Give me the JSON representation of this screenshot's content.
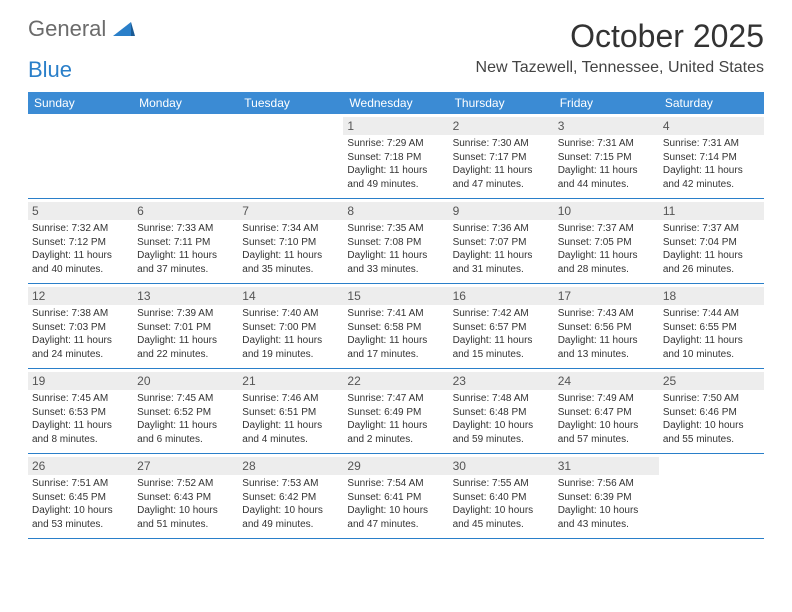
{
  "logo": {
    "text1": "General",
    "text2": "Blue"
  },
  "title": "October 2025",
  "location": "New Tazewell, Tennessee, United States",
  "header_bg": "#3b8bd4",
  "accent_color": "#2a7fc9",
  "daynum_bg": "#ededed",
  "days": [
    "Sunday",
    "Monday",
    "Tuesday",
    "Wednesday",
    "Thursday",
    "Friday",
    "Saturday"
  ],
  "weeks": [
    [
      null,
      null,
      null,
      {
        "n": "1",
        "sr": "7:29 AM",
        "ss": "7:18 PM",
        "dl": "11 hours and 49 minutes."
      },
      {
        "n": "2",
        "sr": "7:30 AM",
        "ss": "7:17 PM",
        "dl": "11 hours and 47 minutes."
      },
      {
        "n": "3",
        "sr": "7:31 AM",
        "ss": "7:15 PM",
        "dl": "11 hours and 44 minutes."
      },
      {
        "n": "4",
        "sr": "7:31 AM",
        "ss": "7:14 PM",
        "dl": "11 hours and 42 minutes."
      }
    ],
    [
      {
        "n": "5",
        "sr": "7:32 AM",
        "ss": "7:12 PM",
        "dl": "11 hours and 40 minutes."
      },
      {
        "n": "6",
        "sr": "7:33 AM",
        "ss": "7:11 PM",
        "dl": "11 hours and 37 minutes."
      },
      {
        "n": "7",
        "sr": "7:34 AM",
        "ss": "7:10 PM",
        "dl": "11 hours and 35 minutes."
      },
      {
        "n": "8",
        "sr": "7:35 AM",
        "ss": "7:08 PM",
        "dl": "11 hours and 33 minutes."
      },
      {
        "n": "9",
        "sr": "7:36 AM",
        "ss": "7:07 PM",
        "dl": "11 hours and 31 minutes."
      },
      {
        "n": "10",
        "sr": "7:37 AM",
        "ss": "7:05 PM",
        "dl": "11 hours and 28 minutes."
      },
      {
        "n": "11",
        "sr": "7:37 AM",
        "ss": "7:04 PM",
        "dl": "11 hours and 26 minutes."
      }
    ],
    [
      {
        "n": "12",
        "sr": "7:38 AM",
        "ss": "7:03 PM",
        "dl": "11 hours and 24 minutes."
      },
      {
        "n": "13",
        "sr": "7:39 AM",
        "ss": "7:01 PM",
        "dl": "11 hours and 22 minutes."
      },
      {
        "n": "14",
        "sr": "7:40 AM",
        "ss": "7:00 PM",
        "dl": "11 hours and 19 minutes."
      },
      {
        "n": "15",
        "sr": "7:41 AM",
        "ss": "6:58 PM",
        "dl": "11 hours and 17 minutes."
      },
      {
        "n": "16",
        "sr": "7:42 AM",
        "ss": "6:57 PM",
        "dl": "11 hours and 15 minutes."
      },
      {
        "n": "17",
        "sr": "7:43 AM",
        "ss": "6:56 PM",
        "dl": "11 hours and 13 minutes."
      },
      {
        "n": "18",
        "sr": "7:44 AM",
        "ss": "6:55 PM",
        "dl": "11 hours and 10 minutes."
      }
    ],
    [
      {
        "n": "19",
        "sr": "7:45 AM",
        "ss": "6:53 PM",
        "dl": "11 hours and 8 minutes."
      },
      {
        "n": "20",
        "sr": "7:45 AM",
        "ss": "6:52 PM",
        "dl": "11 hours and 6 minutes."
      },
      {
        "n": "21",
        "sr": "7:46 AM",
        "ss": "6:51 PM",
        "dl": "11 hours and 4 minutes."
      },
      {
        "n": "22",
        "sr": "7:47 AM",
        "ss": "6:49 PM",
        "dl": "11 hours and 2 minutes."
      },
      {
        "n": "23",
        "sr": "7:48 AM",
        "ss": "6:48 PM",
        "dl": "10 hours and 59 minutes."
      },
      {
        "n": "24",
        "sr": "7:49 AM",
        "ss": "6:47 PM",
        "dl": "10 hours and 57 minutes."
      },
      {
        "n": "25",
        "sr": "7:50 AM",
        "ss": "6:46 PM",
        "dl": "10 hours and 55 minutes."
      }
    ],
    [
      {
        "n": "26",
        "sr": "7:51 AM",
        "ss": "6:45 PM",
        "dl": "10 hours and 53 minutes."
      },
      {
        "n": "27",
        "sr": "7:52 AM",
        "ss": "6:43 PM",
        "dl": "10 hours and 51 minutes."
      },
      {
        "n": "28",
        "sr": "7:53 AM",
        "ss": "6:42 PM",
        "dl": "10 hours and 49 minutes."
      },
      {
        "n": "29",
        "sr": "7:54 AM",
        "ss": "6:41 PM",
        "dl": "10 hours and 47 minutes."
      },
      {
        "n": "30",
        "sr": "7:55 AM",
        "ss": "6:40 PM",
        "dl": "10 hours and 45 minutes."
      },
      {
        "n": "31",
        "sr": "7:56 AM",
        "ss": "6:39 PM",
        "dl": "10 hours and 43 minutes."
      },
      null
    ]
  ],
  "labels": {
    "sunrise": "Sunrise: ",
    "sunset": "Sunset: ",
    "daylight": "Daylight: "
  }
}
